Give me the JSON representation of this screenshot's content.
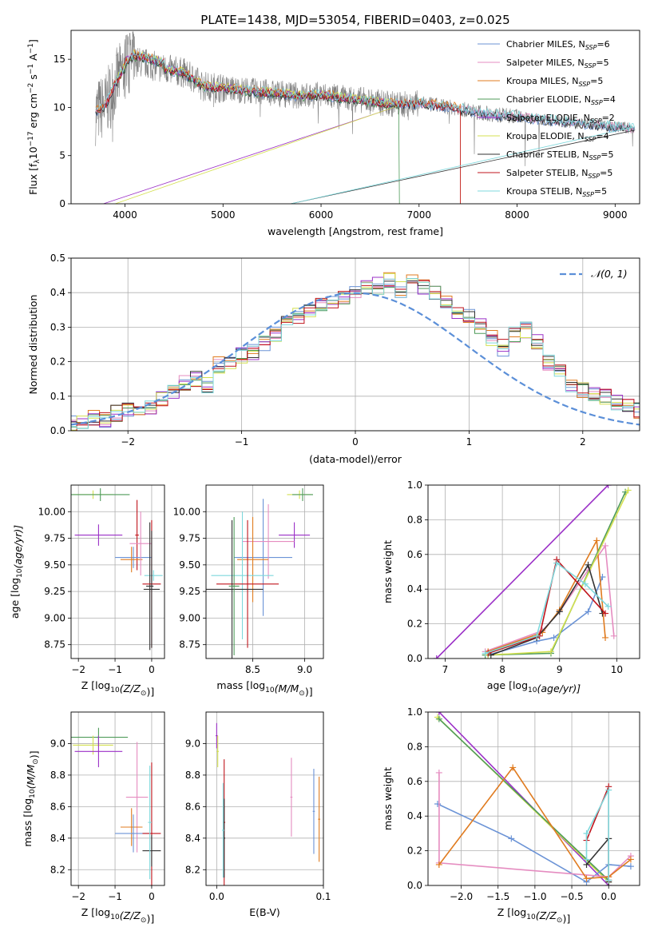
{
  "colors": {
    "chabrier_miles": "#6b93d6",
    "salpeter_miles": "#e58cc0",
    "kroupa_miles": "#e07b1f",
    "chabrier_elodie": "#4f9b5a",
    "salpeter_elodie": "#9b30c7",
    "kroupa_elodie": "#d4e050",
    "chabrier_stelib": "#333333",
    "salpeter_stelib": "#c0141c",
    "kroupa_stelib": "#7fd8dc",
    "observed": "#7f7f7f",
    "normal": "#5b8fd8"
  },
  "chart_data": [
    {
      "id": "spectrum",
      "type": "line",
      "title": "PLATE=1438, MJD=53054, FIBERID=0403, z=0.025",
      "xlabel": "wavelength [Angstrom, rest frame]",
      "ylabel": "Flux [f",
      "ylabel_sub": "λ",
      "ylabel_rest": "10",
      "ylabel_exp": "−17",
      "ylabel_units": " erg cm",
      "ylabel_units_exp1": "−2",
      "ylabel_s": " s",
      "ylabel_s_exp": "−1",
      "ylabel_A": " A",
      "ylabel_A_exp": "−1",
      "ylabel_close": "]",
      "xlim": [
        3450,
        9250
      ],
      "ylim": [
        0,
        18
      ],
      "xticks": [
        "4000",
        "5000",
        "6000",
        "7000",
        "8000",
        "9000"
      ],
      "yticks": [
        "0",
        "5",
        "10",
        "15"
      ],
      "grid": false,
      "legend_position": "top-right",
      "spectrum_shape": {
        "x": [
          3700,
          3800,
          3900,
          4000,
          4100,
          4200,
          4400,
          4600,
          4800,
          5000,
          5200,
          5400,
          5600,
          5800,
          6000,
          6200,
          6400,
          6600,
          6800,
          7000,
          7200,
          7400,
          7600,
          7800,
          8000,
          8200,
          8400,
          8600,
          8800,
          9000,
          9200
        ],
        "y": [
          9.5,
          10.2,
          12.5,
          14.2,
          14.8,
          14.6,
          14.0,
          13.6,
          12.2,
          12.0,
          11.8,
          11.6,
          11.4,
          11.2,
          11.3,
          11.0,
          10.8,
          10.5,
          10.3,
          10.4,
          10.2,
          9.9,
          9.5,
          9.2,
          9.1,
          8.8,
          8.6,
          8.4,
          8.2,
          8.0,
          7.8
        ]
      },
      "series": [
        {
          "name": "Chabrier MILES, N",
          "sub": "SSP",
          "suffix": "=6",
          "color_key": "chabrier_miles"
        },
        {
          "name": "Salpeter MILES, N",
          "sub": "SSP",
          "suffix": "=5",
          "color_key": "salpeter_miles"
        },
        {
          "name": "Kroupa MILES, N",
          "sub": "SSP",
          "suffix": "=5",
          "color_key": "kroupa_miles"
        },
        {
          "name": "Chabrier ELODIE, N",
          "sub": "SSP",
          "suffix": "=4",
          "color_key": "chabrier_elodie"
        },
        {
          "name": "Salpeter ELODIE, N",
          "sub": "SSP",
          "suffix": "=2",
          "color_key": "salpeter_elodie"
        },
        {
          "name": "Kroupa ELODIE, N",
          "sub": "SSP",
          "suffix": "=4",
          "color_key": "kroupa_elodie"
        },
        {
          "name": "Chabrier STELIB, N",
          "sub": "SSP",
          "suffix": "=5",
          "color_key": "chabrier_stelib"
        },
        {
          "name": "Salpeter STELIB, N",
          "sub": "SSP",
          "suffix": "=5",
          "color_key": "salpeter_stelib"
        },
        {
          "name": "Kroupa STELIB, N",
          "sub": "SSP",
          "suffix": "=5",
          "color_key": "kroupa_stelib"
        }
      ]
    },
    {
      "id": "residuals",
      "type": "histogram",
      "xlabel": "(data-model)/error",
      "ylabel": "Normed distribution",
      "xlim": [
        -2.5,
        2.5
      ],
      "ylim": [
        0,
        0.5
      ],
      "xticks": [
        "−2",
        "−1",
        "0",
        "1",
        "2"
      ],
      "yticks": [
        "0.0",
        "0.1",
        "0.2",
        "0.3",
        "0.4",
        "0.5"
      ],
      "grid": true,
      "legend_position": "top-right",
      "legend_label": "𝒩(0, 1)",
      "bin_edges_step": 0.1,
      "base_values": [
        0.02,
        0.03,
        0.04,
        0.03,
        0.05,
        0.06,
        0.07,
        0.07,
        0.09,
        0.11,
        0.14,
        0.15,
        0.13,
        0.19,
        0.2,
        0.22,
        0.23,
        0.25,
        0.28,
        0.31,
        0.33,
        0.35,
        0.36,
        0.37,
        0.39,
        0.4,
        0.41,
        0.42,
        0.44,
        0.41,
        0.43,
        0.42,
        0.4,
        0.38,
        0.34,
        0.33,
        0.3,
        0.27,
        0.24,
        0.28,
        0.29,
        0.26,
        0.2,
        0.17,
        0.13,
        0.12,
        0.11,
        0.1,
        0.08,
        0.07,
        0.06,
        0.05,
        0.04,
        0.04,
        0.03,
        0.02
      ]
    },
    {
      "id": "age_vs_Z",
      "type": "errorbar",
      "xlabel": "Z [log",
      "xlabel_sub": "10",
      "xlabel_rest": "(Z/Z",
      "xlabel_sun": "⊙",
      "xlabel_close": ")]",
      "ylabel": "age  [log",
      "ylabel_sub": "10",
      "ylabel_rest": "(age/yr)]",
      "xlim": [
        -2.2,
        0.35
      ],
      "ylim": [
        8.62,
        10.25
      ],
      "xticks": [
        "−2",
        "−1",
        "0"
      ],
      "yticks": [
        "8.75",
        "9.00",
        "9.25",
        "9.50",
        "9.75",
        "10.00"
      ],
      "grid": true,
      "points": [
        {
          "x": -1.6,
          "y": 10.16,
          "xerr": 0.55,
          "yerr": 0.04,
          "color_key": "kroupa_elodie"
        },
        {
          "x": -1.4,
          "y": 10.16,
          "xerr": 0.8,
          "yerr": 0.06,
          "color_key": "chabrier_elodie"
        },
        {
          "x": -1.45,
          "y": 9.78,
          "xerr": 0.65,
          "yerr": 0.1,
          "color_key": "salpeter_elodie"
        },
        {
          "x": -0.4,
          "y": 9.78,
          "xerr": 0.05,
          "yerr": 0.33,
          "color_key": "salpeter_stelib"
        },
        {
          "x": -0.5,
          "y": 9.57,
          "xerr": 0.5,
          "yerr": 0.1,
          "color_key": "chabrier_miles"
        },
        {
          "x": -0.55,
          "y": 9.55,
          "xerr": 0.3,
          "yerr": 0.12,
          "color_key": "kroupa_miles"
        },
        {
          "x": -0.3,
          "y": 9.7,
          "xerr": 0.3,
          "yerr": 0.3,
          "color_key": "salpeter_miles"
        },
        {
          "x": 0.05,
          "y": 9.4,
          "xerr": 0.25,
          "yerr": 0.05,
          "color_key": "kroupa_stelib"
        },
        {
          "x": -0.05,
          "y": 9.3,
          "xerr": 0.1,
          "yerr": 0.6,
          "color_key": "chabrier_stelib"
        },
        {
          "x": 0.0,
          "y": 9.32,
          "xerr": 0.25,
          "yerr": 0.6,
          "color_key": "salpeter_stelib"
        },
        {
          "x": 0.0,
          "y": 9.27,
          "xerr": 0.22,
          "yerr": 0.55,
          "color_key": "chabrier_stelib"
        }
      ]
    },
    {
      "id": "age_vs_mass",
      "type": "errorbar",
      "xlabel": "mass [log",
      "xlabel_sub": "10",
      "xlabel_rest": "(M/M",
      "xlabel_sun": "⊙",
      "xlabel_close": ")]",
      "xlim": [
        8.05,
        9.18
      ],
      "ylim": [
        8.62,
        10.25
      ],
      "xticks": [
        "8.5",
        "9.0"
      ],
      "yticks": [
        "8.75",
        "9.00",
        "9.25",
        "9.50",
        "9.75",
        "10.00"
      ],
      "grid": true,
      "points": [
        {
          "x": 8.95,
          "y": 10.16,
          "xerr": 0.12,
          "yerr": 0.04,
          "color_key": "kroupa_elodie"
        },
        {
          "x": 8.98,
          "y": 10.16,
          "xerr": 0.1,
          "yerr": 0.06,
          "color_key": "chabrier_elodie"
        },
        {
          "x": 8.9,
          "y": 9.78,
          "xerr": 0.15,
          "yerr": 0.12,
          "color_key": "salpeter_elodie"
        },
        {
          "x": 8.6,
          "y": 9.57,
          "xerr": 0.28,
          "yerr": 0.55,
          "color_key": "chabrier_miles"
        },
        {
          "x": 8.65,
          "y": 9.72,
          "xerr": 0.25,
          "yerr": 0.35,
          "color_key": "salpeter_miles"
        },
        {
          "x": 8.5,
          "y": 9.55,
          "xerr": 0.15,
          "yerr": 0.4,
          "color_key": "kroupa_miles"
        },
        {
          "x": 8.4,
          "y": 9.4,
          "xerr": 0.3,
          "yerr": 0.6,
          "color_key": "kroupa_stelib"
        },
        {
          "x": 8.45,
          "y": 9.32,
          "xerr": 0.3,
          "yerr": 0.6,
          "color_key": "salpeter_stelib"
        },
        {
          "x": 8.3,
          "y": 9.27,
          "xerr": 0.3,
          "yerr": 0.65,
          "color_key": "chabrier_stelib"
        },
        {
          "x": 8.32,
          "y": 9.3,
          "xerr": 0.05,
          "yerr": 0.65,
          "color_key": "chabrier_elodie"
        }
      ]
    },
    {
      "id": "weight_vs_age",
      "type": "line",
      "xlabel": "age  [log",
      "xlabel_sub": "10",
      "xlabel_rest": "(age/yr)]",
      "ylabel": "mass weight",
      "xlim": [
        6.7,
        10.4
      ],
      "ylim": [
        0,
        1.0
      ],
      "xticks": [
        "7",
        "8",
        "9",
        "10"
      ],
      "yticks": [
        "0.0",
        "0.2",
        "0.4",
        "0.6",
        "0.8",
        "1.0"
      ],
      "grid": true,
      "series": [
        {
          "color_key": "salpeter_elodie",
          "x": [
            6.85,
            9.85
          ],
          "y": [
            0.0,
            1.0
          ]
        },
        {
          "color_key": "chabrier_miles",
          "x": [
            7.75,
            8.6,
            8.9,
            9.5,
            9.75
          ],
          "y": [
            0.02,
            0.1,
            0.12,
            0.27,
            0.47
          ]
        },
        {
          "color_key": "salpeter_miles",
          "x": [
            7.7,
            8.7,
            9.0,
            9.5,
            9.8,
            9.95
          ],
          "y": [
            0.04,
            0.16,
            0.27,
            0.51,
            0.65,
            0.13
          ]
        },
        {
          "color_key": "kroupa_miles",
          "x": [
            7.75,
            8.7,
            9.0,
            9.65,
            9.8
          ],
          "y": [
            0.04,
            0.15,
            0.28,
            0.68,
            0.12
          ]
        },
        {
          "color_key": "chabrier_elodie",
          "x": [
            7.7,
            8.85,
            10.15
          ],
          "y": [
            0.02,
            0.03,
            0.96
          ]
        },
        {
          "color_key": "kroupa_elodie",
          "x": [
            7.75,
            8.85,
            10.2
          ],
          "y": [
            0.02,
            0.04,
            0.97
          ]
        },
        {
          "color_key": "chabrier_stelib",
          "x": [
            7.8,
            8.6,
            9.0,
            9.5,
            9.75
          ],
          "y": [
            0.02,
            0.12,
            0.27,
            0.54,
            0.26
          ]
        },
        {
          "color_key": "salpeter_stelib",
          "x": [
            7.75,
            8.65,
            8.95,
            9.8
          ],
          "y": [
            0.03,
            0.13,
            0.57,
            0.26
          ]
        },
        {
          "color_key": "kroupa_stelib",
          "x": [
            7.7,
            8.6,
            8.95,
            9.45,
            9.85
          ],
          "y": [
            0.03,
            0.13,
            0.55,
            0.43,
            0.3
          ]
        }
      ]
    },
    {
      "id": "mass_vs_Z",
      "type": "errorbar",
      "xlabel": "Z [log",
      "xlabel_sub": "10",
      "xlabel_rest": "(Z/Z",
      "xlabel_sun": "⊙",
      "xlabel_close": ")]",
      "ylabel": "mass [log",
      "ylabel_sub": "10",
      "ylabel_rest": "(M/M",
      "ylabel_sun": "⊙",
      "ylabel_close": ")]",
      "xlim": [
        -2.2,
        0.35
      ],
      "ylim": [
        8.1,
        9.2
      ],
      "xticks": [
        "−2",
        "−1",
        "0"
      ],
      "yticks": [
        "8.2",
        "8.4",
        "8.6",
        "8.8",
        "9.0"
      ],
      "grid": true,
      "points": [
        {
          "x": -1.45,
          "y": 9.04,
          "xerr": 0.8,
          "yerr": 0.06,
          "color_key": "chabrier_elodie"
        },
        {
          "x": -1.6,
          "y": 8.99,
          "xerr": 0.55,
          "yerr": 0.06,
          "color_key": "kroupa_elodie"
        },
        {
          "x": -1.45,
          "y": 8.95,
          "xerr": 0.65,
          "yerr": 0.1,
          "color_key": "salpeter_elodie"
        },
        {
          "x": -0.4,
          "y": 8.66,
          "xerr": 0.3,
          "yerr": 0.35,
          "color_key": "salpeter_miles"
        },
        {
          "x": -0.55,
          "y": 8.47,
          "xerr": 0.3,
          "yerr": 0.12,
          "color_key": "kroupa_miles"
        },
        {
          "x": -0.5,
          "y": 8.43,
          "xerr": 0.5,
          "yerr": 0.12,
          "color_key": "chabrier_miles"
        },
        {
          "x": 0.0,
          "y": 8.43,
          "xerr": 0.25,
          "yerr": 0.45,
          "color_key": "salpeter_stelib"
        },
        {
          "x": 0.0,
          "y": 8.32,
          "xerr": 0.25,
          "yerr": 0.1,
          "color_key": "chabrier_stelib"
        },
        {
          "x": -0.05,
          "y": 8.5,
          "xerr": 0.05,
          "yerr": 0.36,
          "color_key": "kroupa_stelib"
        }
      ]
    },
    {
      "id": "mass_vs_ebv",
      "type": "errorbar",
      "xlabel": "E(B-V)",
      "xlim": [
        -0.01,
        0.1
      ],
      "ylim": [
        8.1,
        9.2
      ],
      "xticks": [
        "0.0",
        "0.1"
      ],
      "yticks": [
        "8.2",
        "8.4",
        "8.6",
        "8.8",
        "9.0"
      ],
      "grid": true,
      "points": [
        {
          "x": 0.0,
          "y": 9.05,
          "xerr": 0.001,
          "yerr": 0.08,
          "color_key": "salpeter_elodie"
        },
        {
          "x": 0.001,
          "y": 8.95,
          "xerr": 0.001,
          "yerr": 0.1,
          "color_key": "kroupa_elodie"
        },
        {
          "x": 0.007,
          "y": 8.5,
          "xerr": 0.001,
          "yerr": 0.4,
          "color_key": "salpeter_stelib"
        },
        {
          "x": 0.007,
          "y": 8.4,
          "xerr": 0.001,
          "yerr": 0.25,
          "color_key": "chabrier_stelib"
        },
        {
          "x": 0.006,
          "y": 8.45,
          "xerr": 0.001,
          "yerr": 0.3,
          "color_key": "kroupa_stelib"
        },
        {
          "x": 0.07,
          "y": 8.66,
          "xerr": 0.001,
          "yerr": 0.25,
          "color_key": "salpeter_miles"
        },
        {
          "x": 0.091,
          "y": 8.57,
          "xerr": 0.001,
          "yerr": 0.27,
          "color_key": "chabrier_miles"
        },
        {
          "x": 0.096,
          "y": 8.52,
          "xerr": 0.001,
          "yerr": 0.27,
          "color_key": "kroupa_miles"
        }
      ]
    },
    {
      "id": "weight_vs_Z",
      "type": "line",
      "xlabel": "Z [log",
      "xlabel_sub": "10",
      "xlabel_rest": "(Z/Z",
      "xlabel_sun": "⊙",
      "xlabel_close": ")]",
      "ylabel": "mass weight",
      "xlim": [
        -2.45,
        0.42
      ],
      "ylim": [
        0,
        1.0
      ],
      "xticks": [
        "−2.0",
        "−1.5",
        "−1.0",
        "−0.5",
        "0.0"
      ],
      "yticks": [
        "0.0",
        "0.2",
        "0.4",
        "0.6",
        "0.8",
        "1.0"
      ],
      "grid": true,
      "series": [
        {
          "color_key": "salpeter_elodie",
          "x": [
            -2.3,
            0.0
          ],
          "y": [
            1.0,
            0.0
          ]
        },
        {
          "color_key": "kroupa_elodie",
          "x": [
            -2.32,
            0.0
          ],
          "y": [
            0.97,
            0.02
          ]
        },
        {
          "color_key": "chabrier_elodie",
          "x": [
            -2.3,
            0.0
          ],
          "y": [
            0.96,
            0.03
          ]
        },
        {
          "color_key": "chabrier_miles",
          "x": [
            -2.32,
            -1.32,
            -0.3,
            0.0,
            0.3
          ],
          "y": [
            0.47,
            0.27,
            0.02,
            0.12,
            0.11
          ]
        },
        {
          "color_key": "salpeter_miles",
          "x": [
            -2.3,
            -2.3,
            0.0,
            0.3
          ],
          "y": [
            0.65,
            0.13,
            0.05,
            0.17
          ]
        },
        {
          "color_key": "kroupa_miles",
          "x": [
            -2.3,
            -1.3,
            -0.3,
            0.0,
            0.3
          ],
          "y": [
            0.12,
            0.68,
            0.04,
            0.05,
            0.15
          ]
        },
        {
          "color_key": "chabrier_stelib",
          "x": [
            -0.3,
            0.0,
            0.0
          ],
          "y": [
            0.12,
            0.27,
            0.02
          ]
        },
        {
          "color_key": "salpeter_stelib",
          "x": [
            -0.3,
            0.0,
            0.0
          ],
          "y": [
            0.26,
            0.57,
            0.03
          ]
        },
        {
          "color_key": "kroupa_stelib",
          "x": [
            -0.3,
            -0.3,
            0.0,
            0.0
          ],
          "y": [
            0.15,
            0.3,
            0.55,
            0.03
          ]
        }
      ]
    }
  ]
}
